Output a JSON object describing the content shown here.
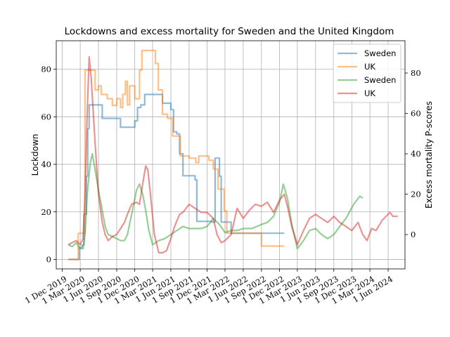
{
  "chart_data": {
    "type": "line",
    "title": "Lockdowns and excess mortality for Sweden and the United Kingdom",
    "xlabel": "",
    "ylabel_left": "Lockdown",
    "ylabel_right": "Excess mortality P-scores",
    "grid": true,
    "legend_position": "top-right",
    "x_ticks": [
      "1 Dec 2019",
      "1 Mar 2020",
      "1 Jun 2020",
      "1 Sep 2020",
      "1 Dec 2020",
      "1 Mar 2021",
      "1 Jun 2021",
      "1 Sep 2021",
      "1 Dec 2021",
      "1 Mar 2022",
      "1 Jun 2022",
      "1 Sep 2022",
      "1 Dec 2022",
      "1 Mar 2023",
      "1 Jun 2023",
      "1 Sep 2023",
      "1 Dec 2023",
      "1 Mar 2024",
      "1 Jun 2024"
    ],
    "y_left_ticks": [
      0,
      20,
      40,
      60,
      80
    ],
    "y_right_ticks": [
      0,
      20,
      40,
      60,
      80
    ],
    "y_left_range": [
      -4,
      92
    ],
    "y_right_range": [
      -17,
      96
    ],
    "colors": {
      "lockdown_sweden": "#1f77b4",
      "lockdown_uk": "#ff7f0e",
      "mortality_sweden": "#2ca02c",
      "mortality_uk": "#d62728"
    },
    "series": [
      {
        "name": "Sweden",
        "axis": "left",
        "step": true,
        "color_key": "lockdown_sweden",
        "points": [
          [
            "2020-01-01",
            0
          ],
          [
            "2020-02-15",
            0
          ],
          [
            "2020-02-25",
            5
          ],
          [
            "2020-03-10",
            6
          ],
          [
            "2020-03-20",
            19
          ],
          [
            "2020-04-01",
            35
          ],
          [
            "2020-04-08",
            55
          ],
          [
            "2020-04-15",
            65
          ],
          [
            "2020-06-20",
            59.3
          ],
          [
            "2020-09-20",
            55.6
          ],
          [
            "2020-12-01",
            58.3
          ],
          [
            "2020-12-15",
            63.9
          ],
          [
            "2021-01-01",
            65
          ],
          [
            "2021-01-20",
            69.4
          ],
          [
            "2021-04-20",
            65.7
          ],
          [
            "2021-06-01",
            63
          ],
          [
            "2021-06-15",
            53.7
          ],
          [
            "2021-07-01",
            52.8
          ],
          [
            "2021-07-15",
            44.4
          ],
          [
            "2021-08-01",
            35.2
          ],
          [
            "2021-10-01",
            33.5
          ],
          [
            "2021-10-10",
            16
          ],
          [
            "2021-12-25",
            15.7
          ],
          [
            "2022-01-10",
            42.6
          ],
          [
            "2022-02-01",
            35
          ],
          [
            "2022-02-10",
            15.7
          ],
          [
            "2022-04-01",
            11
          ],
          [
            "2022-12-25",
            11
          ]
        ]
      },
      {
        "name": "UK",
        "axis": "left",
        "step": true,
        "color_key": "lockdown_uk",
        "points": [
          [
            "2020-01-01",
            0
          ],
          [
            "2020-02-01",
            0
          ],
          [
            "2020-02-20",
            11
          ],
          [
            "2020-03-25",
            79.6
          ],
          [
            "2020-05-15",
            71.3
          ],
          [
            "2020-06-01",
            73
          ],
          [
            "2020-06-15",
            69.4
          ],
          [
            "2020-07-15",
            67.6
          ],
          [
            "2020-08-10",
            64.8
          ],
          [
            "2020-09-01",
            67.6
          ],
          [
            "2020-09-20",
            63.9
          ],
          [
            "2020-10-01",
            69.4
          ],
          [
            "2020-10-15",
            75
          ],
          [
            "2020-10-25",
            65
          ],
          [
            "2020-11-05",
            73
          ],
          [
            "2020-12-01",
            67.6
          ],
          [
            "2020-12-25",
            79.6
          ],
          [
            "2021-01-06",
            87.9
          ],
          [
            "2021-03-15",
            82.4
          ],
          [
            "2021-03-30",
            71.3
          ],
          [
            "2021-04-20",
            61.1
          ],
          [
            "2021-05-15",
            59.3
          ],
          [
            "2021-06-10",
            51.9
          ],
          [
            "2021-07-19",
            43.5
          ],
          [
            "2021-09-01",
            42.6
          ],
          [
            "2021-10-05",
            40.7
          ],
          [
            "2021-10-20",
            43.5
          ],
          [
            "2021-12-10",
            41.7
          ],
          [
            "2022-01-01",
            38
          ],
          [
            "2022-01-25",
            29.6
          ],
          [
            "2022-02-25",
            20.4
          ],
          [
            "2022-03-10",
            11
          ],
          [
            "2022-09-01",
            5.6
          ],
          [
            "2022-12-25",
            5.6
          ]
        ]
      },
      {
        "name": "Sweden",
        "axis": "right",
        "step": false,
        "color_key": "mortality_sweden",
        "points": [
          [
            "2020-01-01",
            -5
          ],
          [
            "2020-01-20",
            -6
          ],
          [
            "2020-02-10",
            -4
          ],
          [
            "2020-03-01",
            -7
          ],
          [
            "2020-03-15",
            -7
          ],
          [
            "2020-03-25",
            0
          ],
          [
            "2020-04-05",
            20
          ],
          [
            "2020-04-20",
            35
          ],
          [
            "2020-05-01",
            40
          ],
          [
            "2020-05-15",
            32
          ],
          [
            "2020-06-01",
            22
          ],
          [
            "2020-06-20",
            12
          ],
          [
            "2020-07-05",
            4
          ],
          [
            "2020-07-20",
            0
          ],
          [
            "2020-08-10",
            -1
          ],
          [
            "2020-09-01",
            -2
          ],
          [
            "2020-09-20",
            -3
          ],
          [
            "2020-10-10",
            -3
          ],
          [
            "2020-10-25",
            0
          ],
          [
            "2020-11-15",
            10
          ],
          [
            "2020-12-10",
            22
          ],
          [
            "2020-12-25",
            25
          ],
          [
            "2021-01-10",
            20
          ],
          [
            "2021-01-25",
            12
          ],
          [
            "2021-02-10",
            2
          ],
          [
            "2021-03-01",
            -5
          ],
          [
            "2021-04-01",
            -3
          ],
          [
            "2021-05-01",
            -2
          ],
          [
            "2021-06-01",
            0
          ],
          [
            "2021-07-01",
            2
          ],
          [
            "2021-08-01",
            4
          ],
          [
            "2021-09-01",
            3
          ],
          [
            "2021-10-01",
            3
          ],
          [
            "2021-11-01",
            3
          ],
          [
            "2021-12-01",
            4
          ],
          [
            "2022-01-01",
            8
          ],
          [
            "2022-02-01",
            5
          ],
          [
            "2022-03-01",
            1
          ],
          [
            "2022-04-01",
            2
          ],
          [
            "2022-05-01",
            2
          ],
          [
            "2022-06-01",
            3
          ],
          [
            "2022-07-15",
            3
          ],
          [
            "2022-09-01",
            5
          ],
          [
            "2022-10-01",
            6
          ],
          [
            "2022-11-01",
            9
          ],
          [
            "2022-12-01",
            16
          ],
          [
            "2022-12-20",
            25
          ],
          [
            "2023-01-10",
            18
          ],
          [
            "2023-02-01",
            5
          ],
          [
            "2023-03-01",
            -7
          ],
          [
            "2023-04-01",
            -3
          ],
          [
            "2023-05-01",
            2
          ],
          [
            "2023-06-01",
            3
          ],
          [
            "2023-07-01",
            0
          ],
          [
            "2023-08-01",
            -2
          ],
          [
            "2023-09-01",
            0
          ],
          [
            "2023-10-01",
            4
          ],
          [
            "2023-11-01",
            8
          ],
          [
            "2023-12-10",
            15
          ],
          [
            "2024-01-10",
            19
          ],
          [
            "2024-01-25",
            18
          ]
        ]
      },
      {
        "name": "UK",
        "axis": "right",
        "step": false,
        "color_key": "mortality_uk",
        "points": [
          [
            "2020-01-01",
            -5
          ],
          [
            "2020-01-20",
            -4
          ],
          [
            "2020-02-10",
            -3
          ],
          [
            "2020-03-01",
            -5
          ],
          [
            "2020-03-15",
            -2
          ],
          [
            "2020-03-25",
            20
          ],
          [
            "2020-04-05",
            60
          ],
          [
            "2020-04-15",
            88
          ],
          [
            "2020-04-25",
            78
          ],
          [
            "2020-05-15",
            45
          ],
          [
            "2020-06-01",
            20
          ],
          [
            "2020-06-20",
            6
          ],
          [
            "2020-07-05",
            0
          ],
          [
            "2020-07-20",
            -3
          ],
          [
            "2020-08-10",
            -1
          ],
          [
            "2020-09-01",
            0
          ],
          [
            "2020-09-20",
            3
          ],
          [
            "2020-10-10",
            6
          ],
          [
            "2020-10-25",
            10
          ],
          [
            "2020-11-15",
            15
          ],
          [
            "2020-12-10",
            16
          ],
          [
            "2020-12-25",
            15
          ],
          [
            "2021-01-10",
            25
          ],
          [
            "2021-01-25",
            34
          ],
          [
            "2021-02-05",
            32
          ],
          [
            "2021-02-20",
            18
          ],
          [
            "2021-03-10",
            0
          ],
          [
            "2021-04-01",
            -9
          ],
          [
            "2021-04-20",
            -9
          ],
          [
            "2021-05-10",
            -8
          ],
          [
            "2021-06-01",
            -2
          ],
          [
            "2021-06-20",
            4
          ],
          [
            "2021-07-15",
            10
          ],
          [
            "2021-08-01",
            11
          ],
          [
            "2021-09-01",
            15
          ],
          [
            "2021-10-01",
            13
          ],
          [
            "2021-11-01",
            11
          ],
          [
            "2021-12-01",
            11
          ],
          [
            "2022-01-01",
            8
          ],
          [
            "2022-01-20",
            0
          ],
          [
            "2022-02-10",
            -4
          ],
          [
            "2022-03-01",
            -3
          ],
          [
            "2022-04-01",
            0
          ],
          [
            "2022-05-01",
            13
          ],
          [
            "2022-06-01",
            8
          ],
          [
            "2022-07-01",
            12
          ],
          [
            "2022-08-01",
            15
          ],
          [
            "2022-09-01",
            14
          ],
          [
            "2022-10-01",
            16
          ],
          [
            "2022-11-01",
            11
          ],
          [
            "2022-12-01",
            17
          ],
          [
            "2022-12-25",
            20
          ],
          [
            "2023-01-10",
            14
          ],
          [
            "2023-02-01",
            4
          ],
          [
            "2023-03-01",
            -5
          ],
          [
            "2023-04-01",
            2
          ],
          [
            "2023-05-01",
            8
          ],
          [
            "2023-06-01",
            10
          ],
          [
            "2023-07-01",
            8
          ],
          [
            "2023-08-01",
            6
          ],
          [
            "2023-09-01",
            9
          ],
          [
            "2023-10-01",
            6
          ],
          [
            "2023-11-01",
            4
          ],
          [
            "2023-12-01",
            2
          ],
          [
            "2024-01-01",
            6
          ],
          [
            "2024-01-25",
            0
          ],
          [
            "2024-02-15",
            -3
          ],
          [
            "2024-03-10",
            3
          ],
          [
            "2024-04-01",
            2
          ],
          [
            "2024-05-01",
            7
          ],
          [
            "2024-06-10",
            11
          ],
          [
            "2024-06-25",
            9
          ],
          [
            "2024-07-20",
            9
          ]
        ]
      }
    ]
  }
}
